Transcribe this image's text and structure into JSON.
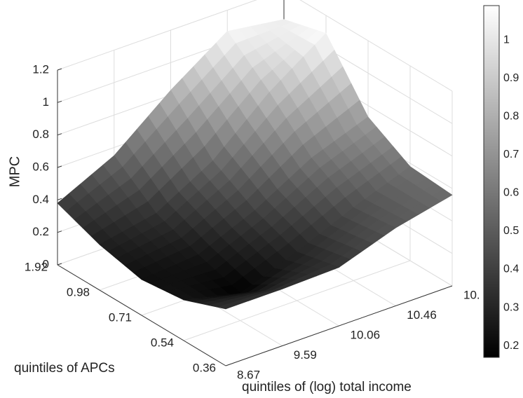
{
  "chart_data": {
    "type": "surface",
    "z_label": "MPC",
    "x_label": "quintiles of (log) total income",
    "y_label": "quintiles of APCs",
    "x_categories": [
      "8.67",
      "9.59",
      "10.06",
      "10.46",
      "10."
    ],
    "y_categories": [
      "1.92",
      "0.98",
      "0.71",
      "0.54",
      "0.36"
    ],
    "z": [
      [
        0.38,
        0.55,
        0.83,
        1.07,
        1.02
      ],
      [
        0.28,
        0.35,
        0.55,
        0.85,
        1.09
      ],
      [
        0.22,
        0.25,
        0.4,
        0.6,
        0.73
      ],
      [
        0.25,
        0.17,
        0.3,
        0.45,
        0.58
      ],
      [
        0.35,
        0.35,
        0.36,
        0.48,
        0.56
      ]
    ],
    "zlim": [
      0,
      1.2
    ],
    "zticks": [
      0,
      0.2,
      0.4,
      0.6,
      0.8,
      1,
      1.2
    ],
    "colormap": "gray",
    "colorbar": {
      "clim": [
        0.17,
        1.09
      ],
      "ticks": [
        0.2,
        0.3,
        0.4,
        0.5,
        0.6,
        0.7,
        0.8,
        0.9,
        1
      ]
    },
    "grid": true
  }
}
